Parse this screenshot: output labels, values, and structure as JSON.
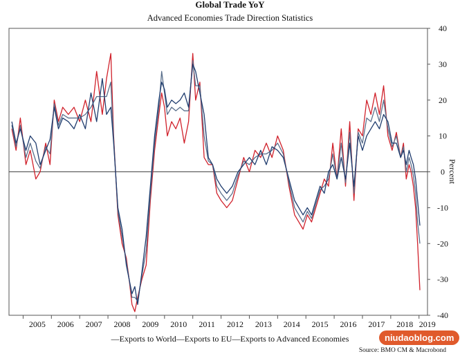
{
  "chart_data": {
    "type": "line",
    "title": "Global Trade YoY",
    "subtitle": "Advanced Economies Trade Direction Statistics",
    "ylabel": "Percent",
    "ylim": [
      -40,
      40
    ],
    "yticks": [
      40,
      30,
      20,
      10,
      0,
      -10,
      -20,
      -30,
      -40
    ],
    "xlim": [
      2004.5,
      2019.3
    ],
    "xtick_labels": [
      "2005",
      "2006",
      "2007",
      "2008",
      "2009",
      "2010",
      "2011",
      "2012",
      "2013",
      "2014",
      "2015",
      "2016",
      "2017",
      "2018",
      "2019"
    ],
    "grid": false,
    "legend_position": "bottom",
    "legend_text": "—Exports to World—Exports to EU—Exports to Advanced Economies",
    "series": [
      {
        "name": "Exports to World",
        "color": "#1f3c6e",
        "x": [
          2004.6,
          2004.75,
          2004.9,
          2005.1,
          2005.25,
          2005.45,
          2005.6,
          2005.8,
          2005.95,
          2006.1,
          2006.25,
          2006.4,
          2006.6,
          2006.8,
          2007.0,
          2007.2,
          2007.4,
          2007.6,
          2007.8,
          2007.95,
          2008.1,
          2008.2,
          2008.35,
          2008.5,
          2008.65,
          2008.75,
          2008.85,
          2008.95,
          2009.05,
          2009.2,
          2009.35,
          2009.5,
          2009.65,
          2009.8,
          2009.9,
          2010.0,
          2010.1,
          2010.25,
          2010.4,
          2010.55,
          2010.7,
          2010.85,
          2011.0,
          2011.1,
          2011.25,
          2011.4,
          2011.55,
          2011.7,
          2011.85,
          2012.0,
          2012.2,
          2012.4,
          2012.6,
          2012.8,
          2013.0,
          2013.2,
          2013.4,
          2013.6,
          2013.8,
          2014.0,
          2014.2,
          2014.4,
          2014.6,
          2014.75,
          2014.9,
          2015.05,
          2015.2,
          2015.35,
          2015.5,
          2015.65,
          2015.8,
          2015.95,
          2016.1,
          2016.25,
          2016.4,
          2016.55,
          2016.7,
          2016.85,
          2017.0,
          2017.15,
          2017.3,
          2017.45,
          2017.6,
          2017.75,
          2017.9,
          2018.05,
          2018.2,
          2018.35,
          2018.45,
          2018.55,
          2018.65,
          2018.72,
          2018.8,
          2018.88,
          2018.95,
          2019.03
        ],
        "values": [
          14,
          8,
          12,
          6,
          10,
          8,
          2,
          6,
          9,
          18,
          12,
          15,
          14,
          12,
          16,
          12,
          22,
          14,
          26,
          16,
          18,
          8,
          -10,
          -16,
          -26,
          -30,
          -34,
          -32,
          -37,
          -28,
          -18,
          -4,
          10,
          20,
          25,
          23,
          18,
          20,
          19,
          20,
          22,
          18,
          30,
          28,
          22,
          16,
          4,
          2,
          -2,
          -4,
          -6,
          -4,
          0,
          2,
          4,
          2,
          6,
          2,
          7,
          6,
          4,
          -2,
          -8,
          -10,
          -12,
          -10,
          -12,
          -8,
          -4,
          -6,
          0,
          2,
          -2,
          4,
          -2,
          8,
          -4,
          10,
          6,
          10,
          12,
          14,
          12,
          16,
          14,
          8,
          8,
          4,
          6,
          2,
          6,
          4,
          2,
          -2,
          -8,
          -15
        ]
      },
      {
        "name": "Exports to EU",
        "color": "#d0202a",
        "x": [
          2004.6,
          2004.75,
          2004.9,
          2005.1,
          2005.25,
          2005.45,
          2005.6,
          2005.8,
          2005.95,
          2006.1,
          2006.25,
          2006.4,
          2006.6,
          2006.8,
          2007.0,
          2007.2,
          2007.4,
          2007.6,
          2007.8,
          2007.95,
          2008.1,
          2008.2,
          2008.35,
          2008.5,
          2008.65,
          2008.75,
          2008.85,
          2008.95,
          2009.05,
          2009.2,
          2009.35,
          2009.5,
          2009.65,
          2009.8,
          2009.9,
          2010.0,
          2010.1,
          2010.25,
          2010.4,
          2010.55,
          2010.7,
          2010.85,
          2011.0,
          2011.1,
          2011.25,
          2011.4,
          2011.55,
          2011.7,
          2011.85,
          2012.0,
          2012.2,
          2012.4,
          2012.6,
          2012.8,
          2013.0,
          2013.2,
          2013.4,
          2013.6,
          2013.8,
          2014.0,
          2014.2,
          2014.4,
          2014.6,
          2014.75,
          2014.9,
          2015.05,
          2015.2,
          2015.35,
          2015.5,
          2015.65,
          2015.8,
          2015.95,
          2016.1,
          2016.25,
          2016.4,
          2016.55,
          2016.7,
          2016.85,
          2017.0,
          2017.15,
          2017.3,
          2017.45,
          2017.6,
          2017.75,
          2017.9,
          2018.05,
          2018.2,
          2018.35,
          2018.45,
          2018.55,
          2018.65,
          2018.72,
          2018.8,
          2018.88,
          2018.95,
          2019.03
        ],
        "values": [
          12,
          6,
          15,
          2,
          6,
          -2,
          0,
          8,
          2,
          20,
          14,
          18,
          16,
          18,
          14,
          20,
          14,
          28,
          16,
          26,
          33,
          10,
          -12,
          -20,
          -24,
          -30,
          -37,
          -39,
          -35,
          -30,
          -26,
          -8,
          6,
          16,
          22,
          18,
          10,
          14,
          12,
          15,
          8,
          14,
          33,
          20,
          25,
          4,
          2,
          2,
          -6,
          -8,
          -10,
          -8,
          -2,
          4,
          0,
          6,
          4,
          8,
          4,
          10,
          6,
          -4,
          -12,
          -14,
          -16,
          -12,
          -14,
          -10,
          -6,
          -2,
          -4,
          8,
          -2,
          12,
          -4,
          14,
          -8,
          12,
          10,
          20,
          16,
          22,
          16,
          24,
          10,
          6,
          11,
          4,
          8,
          -2,
          2,
          0,
          -4,
          -10,
          -20,
          -33
        ]
      },
      {
        "name": "Exports to Advanced Economies",
        "color": "#5a6f8c",
        "x": [
          2004.6,
          2004.75,
          2004.9,
          2005.1,
          2005.25,
          2005.45,
          2005.6,
          2005.8,
          2005.95,
          2006.1,
          2006.25,
          2006.4,
          2006.6,
          2006.8,
          2007.0,
          2007.2,
          2007.4,
          2007.6,
          2007.8,
          2007.95,
          2008.1,
          2008.2,
          2008.35,
          2008.5,
          2008.65,
          2008.75,
          2008.85,
          2008.95,
          2009.05,
          2009.2,
          2009.35,
          2009.5,
          2009.65,
          2009.8,
          2009.9,
          2010.0,
          2010.1,
          2010.25,
          2010.4,
          2010.55,
          2010.7,
          2010.85,
          2011.0,
          2011.1,
          2011.25,
          2011.4,
          2011.55,
          2011.7,
          2011.85,
          2012.0,
          2012.2,
          2012.4,
          2012.6,
          2012.8,
          2013.0,
          2013.2,
          2013.4,
          2013.6,
          2013.8,
          2014.0,
          2014.2,
          2014.4,
          2014.6,
          2014.75,
          2014.9,
          2015.05,
          2015.2,
          2015.35,
          2015.5,
          2015.65,
          2015.8,
          2015.95,
          2016.1,
          2016.25,
          2016.4,
          2016.55,
          2016.7,
          2016.85,
          2017.0,
          2017.15,
          2017.3,
          2017.45,
          2017.6,
          2017.75,
          2017.9,
          2018.05,
          2018.2,
          2018.35,
          2018.45,
          2018.55,
          2018.65,
          2018.72,
          2018.8,
          2018.88,
          2018.95,
          2019.03
        ],
        "values": [
          13,
          7,
          13,
          4,
          8,
          3,
          1,
          7,
          5,
          19,
          13,
          16,
          15,
          15,
          15,
          16,
          18,
          21,
          21,
          21,
          25,
          9,
          -11,
          -18,
          -25,
          -30,
          -35,
          -35,
          -36,
          -29,
          -22,
          -6,
          8,
          18,
          28,
          22,
          16,
          18,
          17,
          18,
          17,
          17,
          31,
          24,
          24,
          10,
          3,
          2,
          -4,
          -6,
          -8,
          -6,
          -1,
          3,
          2,
          4,
          5,
          5,
          6,
          8,
          5,
          -3,
          -10,
          -12,
          -14,
          -11,
          -13,
          -9,
          -5,
          -4,
          -2,
          5,
          -2,
          8,
          -3,
          11,
          -6,
          11,
          8,
          15,
          14,
          18,
          14,
          20,
          12,
          7,
          10,
          4,
          7,
          0,
          4,
          2,
          -1,
          -6,
          -14,
          -20
        ]
      }
    ]
  },
  "source_text": "Source: BMO CM & Macrobond",
  "watermark_text": "niudaoblog.com"
}
